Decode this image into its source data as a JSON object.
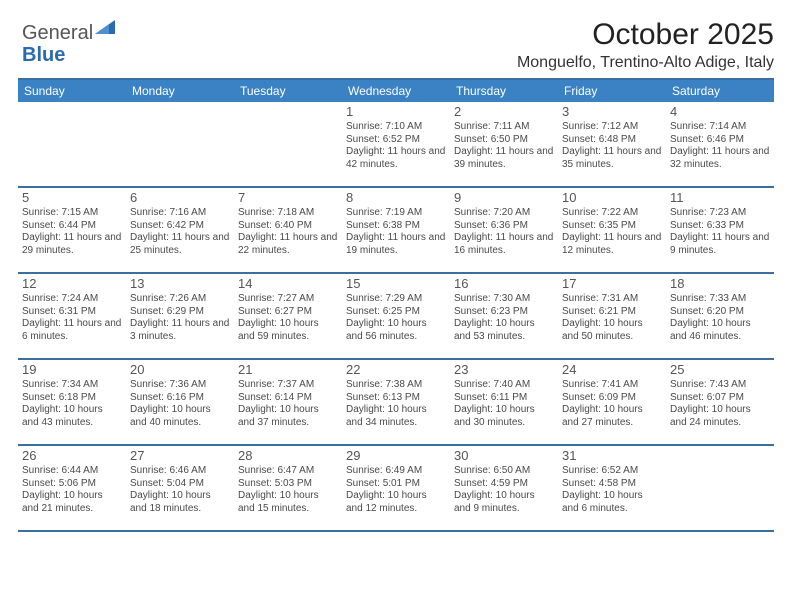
{
  "logo": {
    "part1": "General",
    "part2": "Blue"
  },
  "header": {
    "title": "October 2025",
    "subtitle": "Monguelfo, Trentino-Alto Adige, Italy"
  },
  "colors": {
    "accent": "#3b82c4",
    "border": "#3b6fa0",
    "text": "#1a1a1a",
    "muted": "#4a4a4a",
    "daynum": "#555555",
    "background": "#ffffff",
    "logo_gray": "#555555",
    "logo_blue": "#2a6bb0",
    "dow_text": "#ffffff"
  },
  "dow": [
    "Sunday",
    "Monday",
    "Tuesday",
    "Wednesday",
    "Thursday",
    "Friday",
    "Saturday"
  ],
  "weeks": [
    [
      {
        "empty": true
      },
      {
        "empty": true
      },
      {
        "empty": true
      },
      {
        "num": "1",
        "sunrise": "Sunrise: 7:10 AM",
        "sunset": "Sunset: 6:52 PM",
        "daylight": "Daylight: 11 hours and 42 minutes."
      },
      {
        "num": "2",
        "sunrise": "Sunrise: 7:11 AM",
        "sunset": "Sunset: 6:50 PM",
        "daylight": "Daylight: 11 hours and 39 minutes."
      },
      {
        "num": "3",
        "sunrise": "Sunrise: 7:12 AM",
        "sunset": "Sunset: 6:48 PM",
        "daylight": "Daylight: 11 hours and 35 minutes."
      },
      {
        "num": "4",
        "sunrise": "Sunrise: 7:14 AM",
        "sunset": "Sunset: 6:46 PM",
        "daylight": "Daylight: 11 hours and 32 minutes."
      }
    ],
    [
      {
        "num": "5",
        "sunrise": "Sunrise: 7:15 AM",
        "sunset": "Sunset: 6:44 PM",
        "daylight": "Daylight: 11 hours and 29 minutes."
      },
      {
        "num": "6",
        "sunrise": "Sunrise: 7:16 AM",
        "sunset": "Sunset: 6:42 PM",
        "daylight": "Daylight: 11 hours and 25 minutes."
      },
      {
        "num": "7",
        "sunrise": "Sunrise: 7:18 AM",
        "sunset": "Sunset: 6:40 PM",
        "daylight": "Daylight: 11 hours and 22 minutes."
      },
      {
        "num": "8",
        "sunrise": "Sunrise: 7:19 AM",
        "sunset": "Sunset: 6:38 PM",
        "daylight": "Daylight: 11 hours and 19 minutes."
      },
      {
        "num": "9",
        "sunrise": "Sunrise: 7:20 AM",
        "sunset": "Sunset: 6:36 PM",
        "daylight": "Daylight: 11 hours and 16 minutes."
      },
      {
        "num": "10",
        "sunrise": "Sunrise: 7:22 AM",
        "sunset": "Sunset: 6:35 PM",
        "daylight": "Daylight: 11 hours and 12 minutes."
      },
      {
        "num": "11",
        "sunrise": "Sunrise: 7:23 AM",
        "sunset": "Sunset: 6:33 PM",
        "daylight": "Daylight: 11 hours and 9 minutes."
      }
    ],
    [
      {
        "num": "12",
        "sunrise": "Sunrise: 7:24 AM",
        "sunset": "Sunset: 6:31 PM",
        "daylight": "Daylight: 11 hours and 6 minutes."
      },
      {
        "num": "13",
        "sunrise": "Sunrise: 7:26 AM",
        "sunset": "Sunset: 6:29 PM",
        "daylight": "Daylight: 11 hours and 3 minutes."
      },
      {
        "num": "14",
        "sunrise": "Sunrise: 7:27 AM",
        "sunset": "Sunset: 6:27 PM",
        "daylight": "Daylight: 10 hours and 59 minutes."
      },
      {
        "num": "15",
        "sunrise": "Sunrise: 7:29 AM",
        "sunset": "Sunset: 6:25 PM",
        "daylight": "Daylight: 10 hours and 56 minutes."
      },
      {
        "num": "16",
        "sunrise": "Sunrise: 7:30 AM",
        "sunset": "Sunset: 6:23 PM",
        "daylight": "Daylight: 10 hours and 53 minutes."
      },
      {
        "num": "17",
        "sunrise": "Sunrise: 7:31 AM",
        "sunset": "Sunset: 6:21 PM",
        "daylight": "Daylight: 10 hours and 50 minutes."
      },
      {
        "num": "18",
        "sunrise": "Sunrise: 7:33 AM",
        "sunset": "Sunset: 6:20 PM",
        "daylight": "Daylight: 10 hours and 46 minutes."
      }
    ],
    [
      {
        "num": "19",
        "sunrise": "Sunrise: 7:34 AM",
        "sunset": "Sunset: 6:18 PM",
        "daylight": "Daylight: 10 hours and 43 minutes."
      },
      {
        "num": "20",
        "sunrise": "Sunrise: 7:36 AM",
        "sunset": "Sunset: 6:16 PM",
        "daylight": "Daylight: 10 hours and 40 minutes."
      },
      {
        "num": "21",
        "sunrise": "Sunrise: 7:37 AM",
        "sunset": "Sunset: 6:14 PM",
        "daylight": "Daylight: 10 hours and 37 minutes."
      },
      {
        "num": "22",
        "sunrise": "Sunrise: 7:38 AM",
        "sunset": "Sunset: 6:13 PM",
        "daylight": "Daylight: 10 hours and 34 minutes."
      },
      {
        "num": "23",
        "sunrise": "Sunrise: 7:40 AM",
        "sunset": "Sunset: 6:11 PM",
        "daylight": "Daylight: 10 hours and 30 minutes."
      },
      {
        "num": "24",
        "sunrise": "Sunrise: 7:41 AM",
        "sunset": "Sunset: 6:09 PM",
        "daylight": "Daylight: 10 hours and 27 minutes."
      },
      {
        "num": "25",
        "sunrise": "Sunrise: 7:43 AM",
        "sunset": "Sunset: 6:07 PM",
        "daylight": "Daylight: 10 hours and 24 minutes."
      }
    ],
    [
      {
        "num": "26",
        "sunrise": "Sunrise: 6:44 AM",
        "sunset": "Sunset: 5:06 PM",
        "daylight": "Daylight: 10 hours and 21 minutes."
      },
      {
        "num": "27",
        "sunrise": "Sunrise: 6:46 AM",
        "sunset": "Sunset: 5:04 PM",
        "daylight": "Daylight: 10 hours and 18 minutes."
      },
      {
        "num": "28",
        "sunrise": "Sunrise: 6:47 AM",
        "sunset": "Sunset: 5:03 PM",
        "daylight": "Daylight: 10 hours and 15 minutes."
      },
      {
        "num": "29",
        "sunrise": "Sunrise: 6:49 AM",
        "sunset": "Sunset: 5:01 PM",
        "daylight": "Daylight: 10 hours and 12 minutes."
      },
      {
        "num": "30",
        "sunrise": "Sunrise: 6:50 AM",
        "sunset": "Sunset: 4:59 PM",
        "daylight": "Daylight: 10 hours and 9 minutes."
      },
      {
        "num": "31",
        "sunrise": "Sunrise: 6:52 AM",
        "sunset": "Sunset: 4:58 PM",
        "daylight": "Daylight: 10 hours and 6 minutes."
      },
      {
        "empty": true
      }
    ]
  ]
}
